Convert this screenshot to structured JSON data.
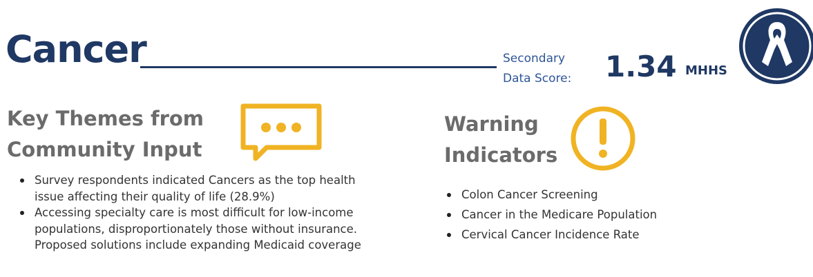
{
  "header": {
    "title": "Cancer",
    "score_label": "Secondary Data Score:",
    "score": "1.34",
    "score_unit": "MHHS"
  },
  "key_themes": {
    "title": "Key Themes from Community Input",
    "items": [
      "Survey respondents indicated Cancers as the top health issue affecting their quality of life (28.9%)",
      "Accessing specialty care is most difficult for low-income populations, disproportionately those without insurance. Proposed solutions include expanding Medicaid coverage"
    ]
  },
  "warning_indicators": {
    "title": "Warning Indicators",
    "items": [
      "Colon Cancer Screening",
      "Cancer in the Medicare Population",
      "Cervical Cancer Incidence Rate"
    ]
  }
}
